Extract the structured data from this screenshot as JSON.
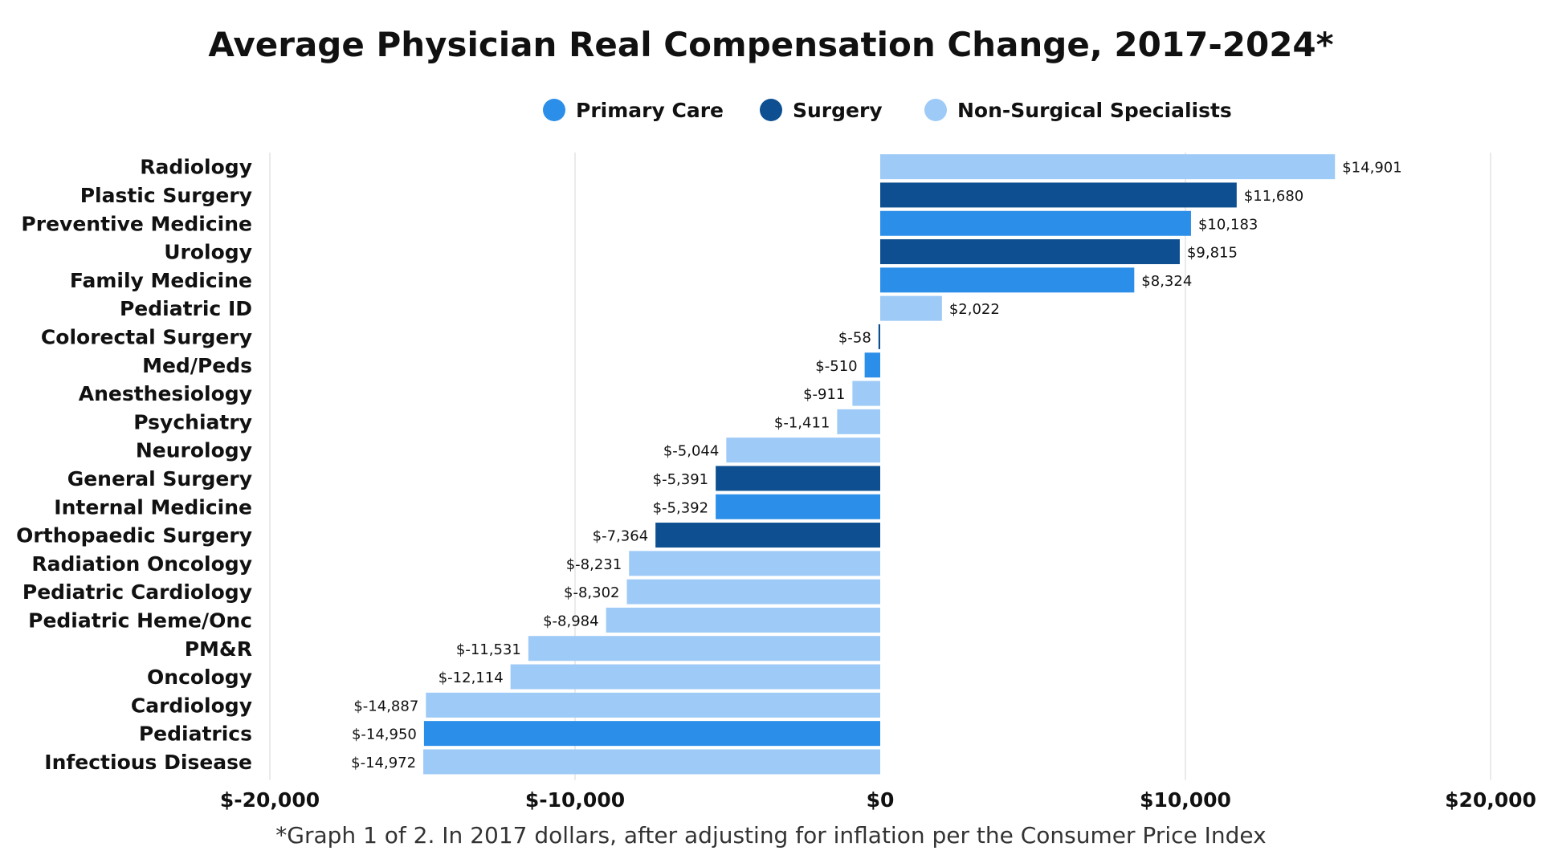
{
  "chart_data": {
    "type": "bar",
    "orientation": "horizontal",
    "title": "Average Physician Real Compensation Change, 2017-2024*",
    "footnote": "*Graph 1 of 2. In 2017 dollars, after adjusting for inflation per the Consumer Price Index",
    "xlim": [
      -20000,
      20000
    ],
    "xticks": [
      -20000,
      -10000,
      0,
      10000,
      20000
    ],
    "xtick_labels": [
      "$-20,000",
      "$-10,000",
      "$0",
      "$10,000",
      "$20,000"
    ],
    "grid": true,
    "legend_position": "top-center",
    "legend": [
      {
        "name": "Primary Care",
        "color": "#2b8ee8"
      },
      {
        "name": "Surgery",
        "color": "#0d4f91"
      },
      {
        "name": "Non-Surgical Specialists",
        "color": "#9ecaf7"
      }
    ],
    "categories": [
      "Radiology",
      "Plastic Surgery",
      "Preventive Medicine",
      "Urology",
      "Family Medicine",
      "Pediatric ID",
      "Colorectal Surgery",
      "Med/Peds",
      "Anesthesiology",
      "Psychiatry",
      "Neurology",
      "General Surgery",
      "Internal Medicine",
      "Orthopaedic Surgery",
      "Radiation Oncology",
      "Pediatric Cardiology",
      "Pediatric Heme/Onc",
      "PM&R",
      "Oncology",
      "Cardiology",
      "Pediatrics",
      "Infectious Disease"
    ],
    "values": [
      14901,
      11680,
      10183,
      9815,
      8324,
      2022,
      -58,
      -510,
      -911,
      -1411,
      -5044,
      -5391,
      -5392,
      -7364,
      -8231,
      -8302,
      -8984,
      -11531,
      -12114,
      -14887,
      -14950,
      -14972
    ],
    "value_labels": [
      "$14,901",
      "$11,680",
      "$10,183",
      "$9,815",
      "$8,324",
      "$2,022",
      "$-58",
      "$-510",
      "$-911",
      "$-1,411",
      "$-5,044",
      "$-5,391",
      "$-5,392",
      "$-7,364",
      "$-8,231",
      "$-8,302",
      "$-8,984",
      "$-11,531",
      "$-12,114",
      "$-14,887",
      "$-14,950",
      "$-14,972"
    ],
    "groups": [
      "Non-Surgical Specialists",
      "Surgery",
      "Primary Care",
      "Surgery",
      "Primary Care",
      "Non-Surgical Specialists",
      "Surgery",
      "Primary Care",
      "Non-Surgical Specialists",
      "Non-Surgical Specialists",
      "Non-Surgical Specialists",
      "Surgery",
      "Primary Care",
      "Surgery",
      "Non-Surgical Specialists",
      "Non-Surgical Specialists",
      "Non-Surgical Specialists",
      "Non-Surgical Specialists",
      "Non-Surgical Specialists",
      "Non-Surgical Specialists",
      "Primary Care",
      "Non-Surgical Specialists"
    ]
  }
}
